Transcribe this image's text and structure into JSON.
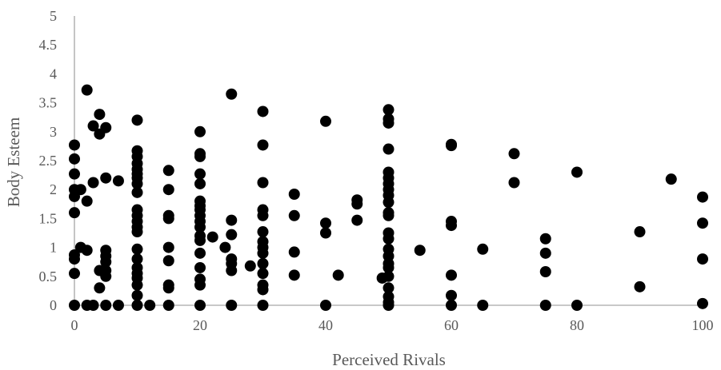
{
  "chart_data": {
    "type": "scatter",
    "xlabel": "Perceived Rivals",
    "ylabel": "Body Esteem",
    "xlim": [
      0,
      100
    ],
    "ylim": [
      0,
      5
    ],
    "xticks": [
      "0",
      "20",
      "40",
      "60",
      "80",
      "100"
    ],
    "yticks": [
      "0",
      "0.5",
      "1",
      "1.5",
      "2",
      "2.5",
      "3",
      "3.5",
      "4",
      "4.5",
      "5"
    ],
    "grid": false,
    "legend": "none",
    "marker_color": "#000000",
    "points": [
      [
        0,
        0
      ],
      [
        0,
        0.55
      ],
      [
        0,
        0.8
      ],
      [
        0,
        0.87
      ],
      [
        0,
        1.6
      ],
      [
        0,
        1.88
      ],
      [
        0,
        2.0
      ],
      [
        0,
        2.27
      ],
      [
        0,
        2.53
      ],
      [
        0,
        2.77
      ],
      [
        1,
        2.0
      ],
      [
        1,
        1.0
      ],
      [
        2,
        3.72
      ],
      [
        2,
        1.8
      ],
      [
        2,
        0.95
      ],
      [
        2,
        0
      ],
      [
        3,
        3.1
      ],
      [
        3,
        2.12
      ],
      [
        3,
        0
      ],
      [
        4,
        3.3
      ],
      [
        4,
        2.96
      ],
      [
        4,
        0.6
      ],
      [
        4,
        0.3
      ],
      [
        5,
        3.07
      ],
      [
        5,
        2.2
      ],
      [
        5,
        0.95
      ],
      [
        5,
        0.85
      ],
      [
        5,
        0.75
      ],
      [
        5,
        0.6
      ],
      [
        5,
        0.5
      ],
      [
        5,
        0
      ],
      [
        7,
        2.15
      ],
      [
        7,
        0
      ],
      [
        10,
        3.2
      ],
      [
        10,
        2.67
      ],
      [
        10,
        2.57
      ],
      [
        10,
        2.45
      ],
      [
        10,
        2.35
      ],
      [
        10,
        2.27
      ],
      [
        10,
        2.2
      ],
      [
        10,
        2.1
      ],
      [
        10,
        1.95
      ],
      [
        10,
        1.65
      ],
      [
        10,
        1.55
      ],
      [
        10,
        1.45
      ],
      [
        10,
        1.35
      ],
      [
        10,
        1.27
      ],
      [
        10,
        0.97
      ],
      [
        10,
        0.8
      ],
      [
        10,
        0.65
      ],
      [
        10,
        0.55
      ],
      [
        10,
        0.47
      ],
      [
        10,
        0.35
      ],
      [
        10,
        0.17
      ],
      [
        10,
        0
      ],
      [
        12,
        0
      ],
      [
        15,
        2.33
      ],
      [
        15,
        2.0
      ],
      [
        15,
        1.55
      ],
      [
        15,
        1.5
      ],
      [
        15,
        1.0
      ],
      [
        15,
        0.77
      ],
      [
        15,
        0.35
      ],
      [
        15,
        0.3
      ],
      [
        15,
        0
      ],
      [
        20,
        3.0
      ],
      [
        20,
        2.62
      ],
      [
        20,
        2.57
      ],
      [
        20,
        2.27
      ],
      [
        20,
        2.1
      ],
      [
        20,
        1.8
      ],
      [
        20,
        1.72
      ],
      [
        20,
        1.65
      ],
      [
        20,
        1.55
      ],
      [
        20,
        1.45
      ],
      [
        20,
        1.35
      ],
      [
        20,
        1.2
      ],
      [
        20,
        1.12
      ],
      [
        20,
        0.9
      ],
      [
        20,
        0.65
      ],
      [
        20,
        0.45
      ],
      [
        20,
        0.35
      ],
      [
        20,
        0
      ],
      [
        22,
        1.18
      ],
      [
        24,
        1.0
      ],
      [
        25,
        3.65
      ],
      [
        25,
        1.47
      ],
      [
        25,
        1.22
      ],
      [
        25,
        0.8
      ],
      [
        25,
        0.72
      ],
      [
        25,
        0.6
      ],
      [
        25,
        0
      ],
      [
        28,
        0.68
      ],
      [
        30,
        3.35
      ],
      [
        30,
        2.77
      ],
      [
        30,
        2.12
      ],
      [
        30,
        1.65
      ],
      [
        30,
        1.55
      ],
      [
        30,
        1.27
      ],
      [
        30,
        1.1
      ],
      [
        30,
        1.0
      ],
      [
        30,
        0.9
      ],
      [
        30,
        0.72
      ],
      [
        30,
        0.55
      ],
      [
        30,
        0.35
      ],
      [
        30,
        0.27
      ],
      [
        30,
        0
      ],
      [
        35,
        1.92
      ],
      [
        35,
        1.55
      ],
      [
        35,
        0.92
      ],
      [
        35,
        0.52
      ],
      [
        40,
        3.18
      ],
      [
        40,
        1.42
      ],
      [
        40,
        1.25
      ],
      [
        40,
        0
      ],
      [
        42,
        0.52
      ],
      [
        45,
        1.82
      ],
      [
        45,
        1.75
      ],
      [
        45,
        1.47
      ],
      [
        49,
        0.47
      ],
      [
        50,
        3.38
      ],
      [
        50,
        3.22
      ],
      [
        50,
        3.15
      ],
      [
        50,
        2.7
      ],
      [
        50,
        2.3
      ],
      [
        50,
        2.2
      ],
      [
        50,
        2.1
      ],
      [
        50,
        2.0
      ],
      [
        50,
        1.9
      ],
      [
        50,
        1.78
      ],
      [
        50,
        1.6
      ],
      [
        50,
        1.55
      ],
      [
        50,
        1.25
      ],
      [
        50,
        1.15
      ],
      [
        50,
        0.97
      ],
      [
        50,
        0.85
      ],
      [
        50,
        0.72
      ],
      [
        50,
        0.65
      ],
      [
        50,
        0.5
      ],
      [
        50,
        0.3
      ],
      [
        50,
        0.15
      ],
      [
        50,
        0.05
      ],
      [
        50,
        0
      ],
      [
        55,
        0.95
      ],
      [
        60,
        2.78
      ],
      [
        60,
        2.76
      ],
      [
        60,
        1.45
      ],
      [
        60,
        1.38
      ],
      [
        60,
        0.52
      ],
      [
        60,
        0.17
      ],
      [
        60,
        0
      ],
      [
        65,
        0.97
      ],
      [
        65,
        0
      ],
      [
        70,
        2.62
      ],
      [
        70,
        2.12
      ],
      [
        75,
        1.15
      ],
      [
        75,
        0.9
      ],
      [
        75,
        0.58
      ],
      [
        75,
        0
      ],
      [
        80,
        2.3
      ],
      [
        80,
        0
      ],
      [
        90,
        1.27
      ],
      [
        90,
        0.32
      ],
      [
        95,
        2.18
      ],
      [
        100,
        1.87
      ],
      [
        100,
        1.42
      ],
      [
        100,
        0.8
      ],
      [
        100,
        0.03
      ]
    ]
  }
}
